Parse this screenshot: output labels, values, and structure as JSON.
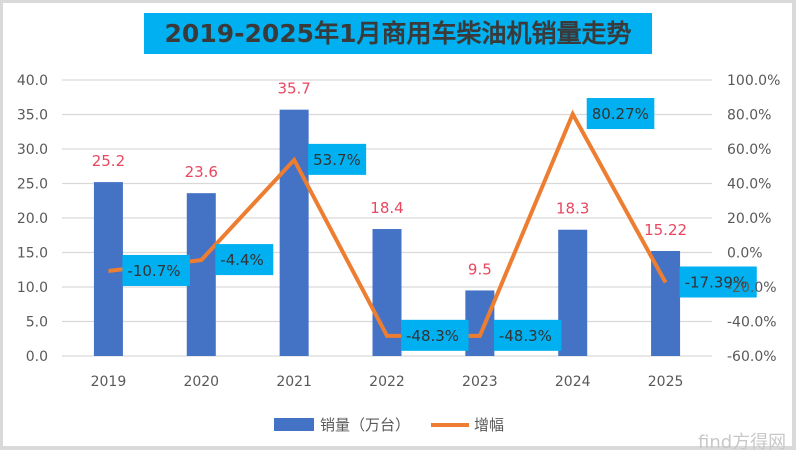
{
  "title": "2019-2025年1月商用车柴油机销量走势",
  "watermark": "find方得网",
  "colors": {
    "bar": "#4472c4",
    "line": "#ed7d31",
    "label_box": "#00b0f0",
    "value_text": "#e8475f",
    "title_bg": "#00b0f0"
  },
  "chart_data": {
    "type": "bar",
    "title": "2019-2025年1月商用车柴油机销量走势",
    "categories": [
      "2019",
      "2020",
      "2021",
      "2022",
      "2023",
      "2024",
      "2025"
    ],
    "series": [
      {
        "name": "销量（万台）",
        "type": "bar",
        "axis": "left",
        "values": [
          25.2,
          23.6,
          35.7,
          18.4,
          9.5,
          18.3,
          15.22
        ],
        "labels": [
          "25.2",
          "23.6",
          "35.7",
          "18.4",
          "9.5",
          "18.3",
          "15.22"
        ]
      },
      {
        "name": "增幅",
        "type": "line",
        "axis": "right",
        "values": [
          -10.7,
          -4.4,
          53.7,
          -48.3,
          -48.3,
          80.27,
          -17.39
        ],
        "labels": [
          "-10.7%",
          "-4.4%",
          "53.7%",
          "-48.3%",
          "-48.3%",
          "80.27%",
          "-17.39%"
        ]
      }
    ],
    "y_left": {
      "min": 0,
      "max": 40,
      "step": 5,
      "ticks": [
        "0.0",
        "5.0",
        "10.0",
        "15.0",
        "20.0",
        "25.0",
        "30.0",
        "35.0",
        "40.0"
      ]
    },
    "y_right": {
      "min": -60,
      "max": 100,
      "step": 20,
      "ticks": [
        "-60.0%",
        "-40.0%",
        "-20.0%",
        "0.0%",
        "20.0%",
        "40.0%",
        "60.0%",
        "80.0%",
        "100.0%"
      ]
    },
    "grid": true,
    "legend": {
      "position": "bottom",
      "entries": [
        "销量（万台）",
        "增幅"
      ]
    },
    "xlabel": "",
    "ylabel": ""
  }
}
